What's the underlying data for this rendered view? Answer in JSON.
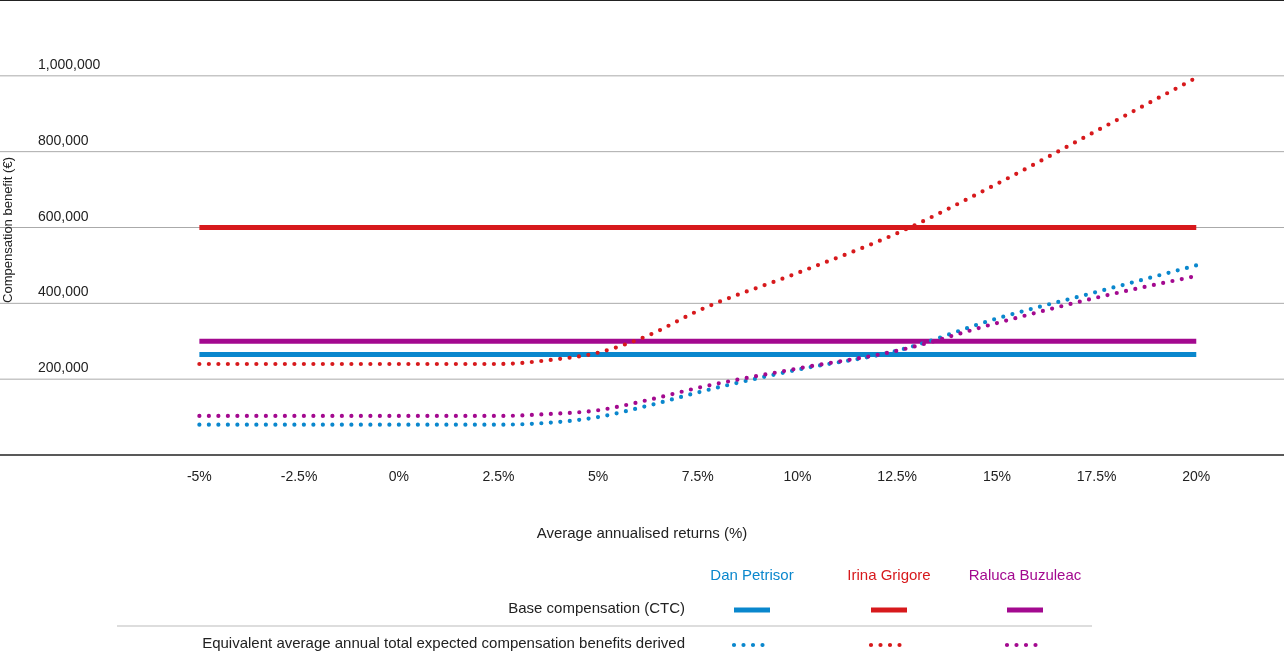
{
  "chart_data": {
    "type": "line",
    "xlabel": "Average annualised returns (%)",
    "ylabel": "Compensation benefit (€)",
    "xlim": [
      -10,
      22.2
    ],
    "xticks": [
      {
        "value": -5,
        "label": "-5%"
      },
      {
        "value": -2.5,
        "label": "-2.5%"
      },
      {
        "value": 0,
        "label": "0%"
      },
      {
        "value": 2.5,
        "label": "2.5%"
      },
      {
        "value": 5,
        "label": "5%"
      },
      {
        "value": 7.5,
        "label": "7.5%"
      },
      {
        "value": 10,
        "label": "10%"
      },
      {
        "value": 12.5,
        "label": "12.5%"
      },
      {
        "value": 15,
        "label": "15%"
      },
      {
        "value": 17.5,
        "label": "17.5%"
      },
      {
        "value": 20,
        "label": "20%"
      }
    ],
    "ylim": [
      0,
      1200000
    ],
    "yticks": [
      {
        "value": 200000,
        "label": "200,000"
      },
      {
        "value": 400000,
        "label": "400,000"
      },
      {
        "value": 600000,
        "label": "600,000"
      },
      {
        "value": 800000,
        "label": "800,000"
      },
      {
        "value": 1000000,
        "label": "1,000,000"
      }
    ],
    "grid": "y",
    "legend": "bottom",
    "annotations": [
      "Base compensation (CTC)",
      "Equivalent average annual total expected compensation benefits derived"
    ],
    "series": [
      {
        "name": "Dan Petrisor",
        "color": "#0a87cd",
        "line_style": "solid",
        "x": [
          -5,
          20
        ],
        "values": [
          265000,
          265000
        ]
      },
      {
        "name": "Irina Grigore",
        "color": "#d7191c",
        "line_style": "solid",
        "x": [
          -5,
          20
        ],
        "values": [
          600000,
          600000
        ]
      },
      {
        "name": "Raluca Buzuleac",
        "color": "#a3098f",
        "line_style": "solid",
        "x": [
          -5,
          20
        ],
        "values": [
          300000,
          300000
        ]
      },
      {
        "color": "#0a87cd",
        "line_style": "dotted",
        "x": [
          -5,
          2.5,
          3.75,
          5,
          6.25,
          7.5,
          10,
          12.5,
          15,
          17.5,
          20
        ],
        "values": [
          80000,
          80000,
          85000,
          100000,
          130000,
          165000,
          225000,
          275000,
          360000,
          430000,
          500000
        ]
      },
      {
        "color": "#d7191c",
        "line_style": "dotted",
        "x": [
          -5,
          2.5,
          3.75,
          5,
          6.25,
          7.5,
          10,
          12.5,
          15,
          17.5,
          20
        ],
        "values": [
          240000,
          240000,
          250000,
          270000,
          315000,
          380000,
          480000,
          585000,
          715000,
          855000,
          995000
        ]
      },
      {
        "color": "#a3098f",
        "line_style": "dotted",
        "x": [
          -5,
          2.5,
          3.75,
          5,
          6.25,
          7.5,
          10,
          12.5,
          15,
          17.5,
          20
        ],
        "values": [
          103000,
          103000,
          108000,
          118000,
          145000,
          177000,
          228000,
          275000,
          348000,
          415000,
          472000
        ]
      }
    ]
  }
}
